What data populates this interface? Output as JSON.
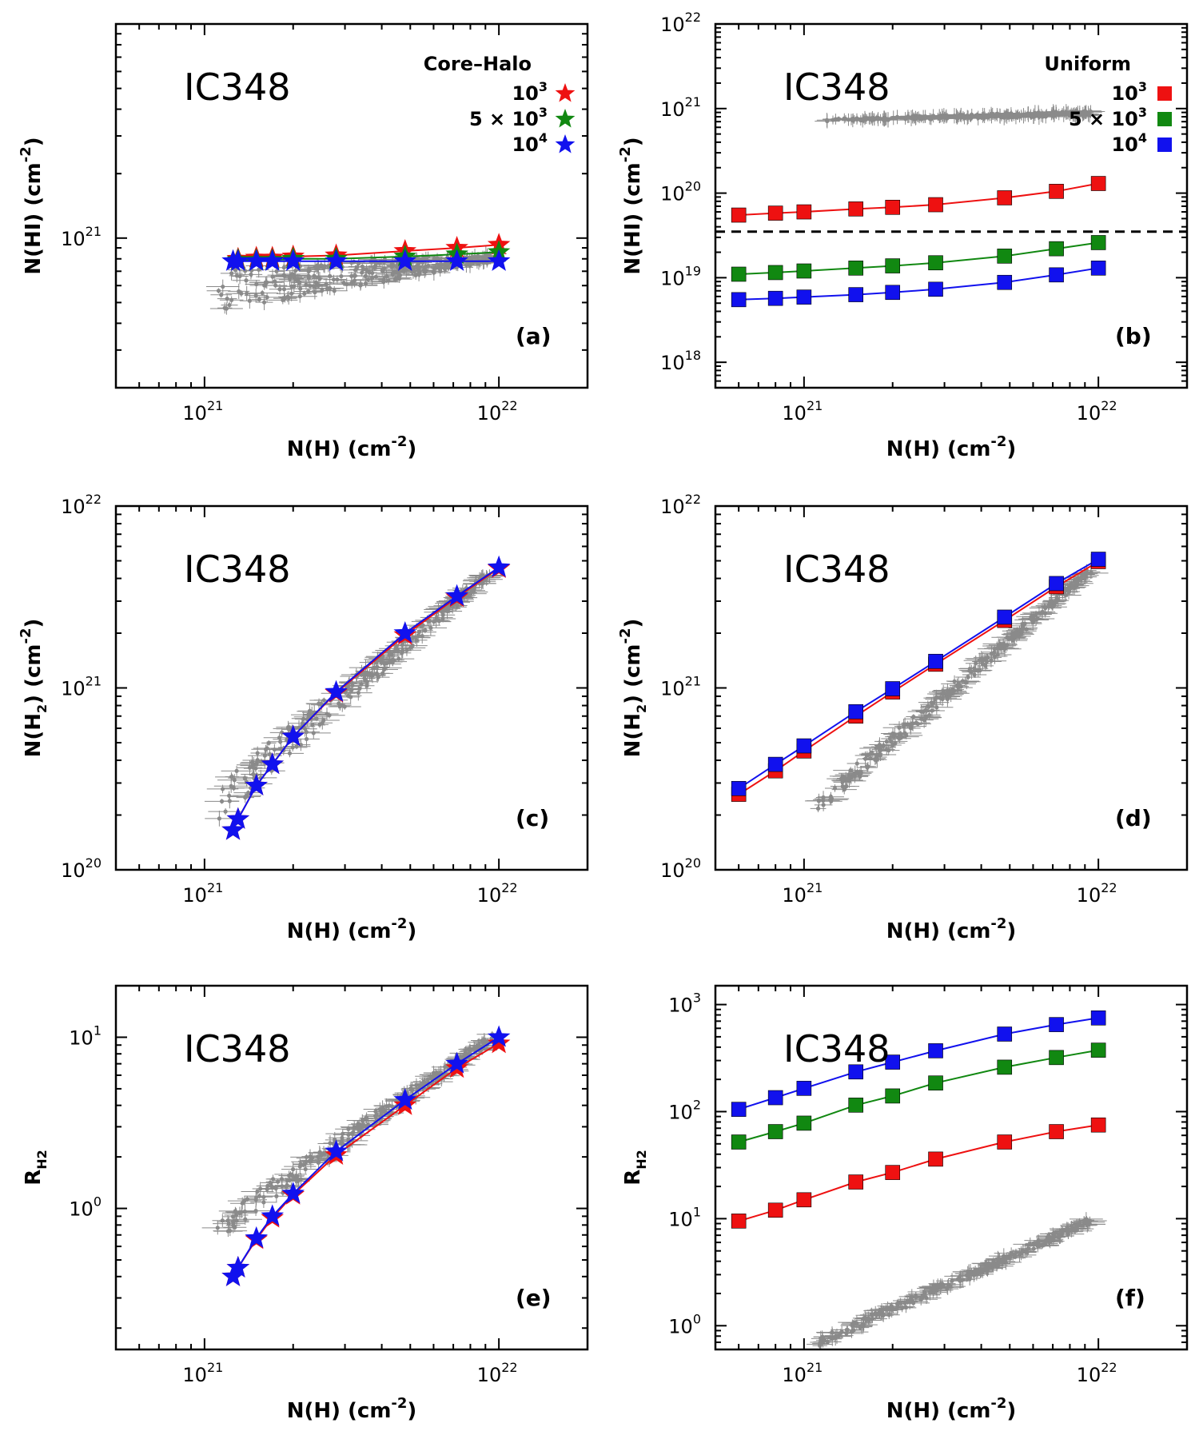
{
  "colors": {
    "red": "#ee1111",
    "green": "#118811",
    "blue": "#1111ee",
    "obs": "#8a8a8a",
    "frame": "#000000"
  },
  "chart_data": [
    {
      "id": "a",
      "type": "line",
      "panel_label": "(a)",
      "title": "IC348",
      "xlabel": "N(H) (cm^-2)",
      "ylabel": "N(HI) (cm^-2)",
      "xlim": [
        5e+20,
        2e+22
      ],
      "ylim": [
        2e+20,
        1e+22
      ],
      "xticks": [
        {
          "v": 1e+21,
          "label": "10",
          "exp": "21"
        },
        {
          "v": 1e+22,
          "label": "10",
          "exp": "22"
        }
      ],
      "yticks": [
        {
          "v": 1e+21,
          "label": "10",
          "exp": "21"
        }
      ],
      "marker": "star",
      "legend": {
        "title": "Core–Halo",
        "entries": [
          "10^3",
          "5 × 10^3",
          "10^4"
        ],
        "position": "top-right"
      },
      "series": [
        {
          "name": "10^3",
          "color": "red",
          "x": [
            1.3e+21,
            1.5e+21,
            1.7e+21,
            2e+21,
            2.8e+21,
            4.8e+21,
            7.2e+21,
            1e+22
          ],
          "y": [
            8e+20,
            8.1e+20,
            8.1e+20,
            8.2e+20,
            8.3e+20,
            8.7e+20,
            9e+20,
            9.3e+20
          ]
        },
        {
          "name": "5 × 10^3",
          "color": "green",
          "x": [
            1.3e+21,
            1.5e+21,
            1.7e+21,
            2e+21,
            2.8e+21,
            4.8e+21,
            7.2e+21,
            1e+22
          ],
          "y": [
            7.9e+20,
            7.9e+20,
            7.9e+20,
            8e+20,
            8e+20,
            8.2e+20,
            8.4e+20,
            8.6e+20
          ]
        },
        {
          "name": "10^4",
          "color": "blue",
          "x": [
            1.25e+21,
            1.3e+21,
            1.5e+21,
            1.7e+21,
            2e+21,
            2.8e+21,
            4.8e+21,
            7.2e+21,
            1e+22
          ],
          "y": [
            7.8e+20,
            7.8e+20,
            7.8e+20,
            7.8e+20,
            7.8e+20,
            7.8e+20,
            7.8e+20,
            7.8e+20,
            7.8e+20
          ]
        }
      ],
      "observed": {
        "x_range": [
          1.1e+21,
          9.5e+21
        ],
        "y_start": [
          4.5e+20,
          7.3e+20
        ],
        "y_end": [
          7.7e+20,
          8.5e+20
        ]
      }
    },
    {
      "id": "b",
      "type": "line",
      "panel_label": "(b)",
      "title": "IC348",
      "xlabel": "N(H) (cm^-2)",
      "ylabel": "N(HI) (cm^-2)",
      "xlim": [
        5e+20,
        2e+22
      ],
      "ylim": [
        5e+17,
        1e+22
      ],
      "xticks": [
        {
          "v": 1e+21,
          "label": "10",
          "exp": "21"
        },
        {
          "v": 1e+22,
          "label": "10",
          "exp": "22"
        }
      ],
      "yticks": [
        {
          "v": 1e+18,
          "label": "10",
          "exp": "18"
        },
        {
          "v": 1e+19,
          "label": "10",
          "exp": "19"
        },
        {
          "v": 1e+20,
          "label": "10",
          "exp": "20"
        },
        {
          "v": 1e+21,
          "label": "10",
          "exp": "21"
        },
        {
          "v": 1e+22,
          "label": "10",
          "exp": "22"
        }
      ],
      "marker": "square",
      "hline": 3.5e+19,
      "legend": {
        "title": "Uniform",
        "entries": [
          "10^3",
          "5 × 10^3",
          "10^4"
        ],
        "position": "top-right"
      },
      "series": [
        {
          "name": "10^3",
          "color": "red",
          "x": [
            6e+20,
            8e+20,
            1e+21,
            1.5e+21,
            2e+21,
            2.8e+21,
            4.8e+21,
            7.2e+21,
            1e+22
          ],
          "y": [
            5.5e+19,
            5.8e+19,
            6e+19,
            6.5e+19,
            6.8e+19,
            7.3e+19,
            8.8e+19,
            1.05e+20,
            1.3e+20
          ]
        },
        {
          "name": "5 × 10^3",
          "color": "green",
          "x": [
            6e+20,
            8e+20,
            1e+21,
            1.5e+21,
            2e+21,
            2.8e+21,
            4.8e+21,
            7.2e+21,
            1e+22
          ],
          "y": [
            1.1e+19,
            1.15e+19,
            1.2e+19,
            1.3e+19,
            1.38e+19,
            1.5e+19,
            1.8e+19,
            2.2e+19,
            2.6e+19
          ]
        },
        {
          "name": "10^4",
          "color": "blue",
          "x": [
            6e+20,
            8e+20,
            1e+21,
            1.5e+21,
            2e+21,
            2.8e+21,
            4.8e+21,
            7.2e+21,
            1e+22
          ],
          "y": [
            5.5e+18,
            5.7e+18,
            5.9e+18,
            6.3e+18,
            6.7e+18,
            7.3e+18,
            8.8e+18,
            1.08e+19,
            1.3e+19
          ]
        }
      ],
      "observed": {
        "x_range": [
          1.1e+21,
          9.5e+21
        ],
        "y_start": [
          7e+20,
          7.5e+20
        ],
        "y_end": [
          8.2e+20,
          9.5e+20
        ]
      }
    },
    {
      "id": "c",
      "type": "line",
      "panel_label": "(c)",
      "title": "IC348",
      "xlabel": "N(H) (cm^-2)",
      "ylabel": "N(H2) (cm^-2)",
      "xlim": [
        5e+20,
        2e+22
      ],
      "ylim": [
        1e+20,
        1e+22
      ],
      "xticks": [
        {
          "v": 1e+21,
          "label": "10",
          "exp": "21"
        },
        {
          "v": 1e+22,
          "label": "10",
          "exp": "22"
        }
      ],
      "yticks": [
        {
          "v": 1e+20,
          "label": "10",
          "exp": "20"
        },
        {
          "v": 1e+21,
          "label": "10",
          "exp": "21"
        },
        {
          "v": 1e+22,
          "label": "10",
          "exp": "22"
        }
      ],
      "marker": "star",
      "series": [
        {
          "name": "10^3",
          "color": "red",
          "x": [
            1.25e+21,
            1.3e+21,
            1.5e+21,
            1.7e+21,
            2e+21,
            2.8e+21,
            4.8e+21,
            7.2e+21,
            1e+22
          ],
          "y": [
            1.65e+20,
            1.9e+20,
            2.9e+20,
            3.8e+20,
            5.4e+20,
            9.4e+20,
            1.95e+21,
            3.15e+21,
            4.55e+21
          ]
        },
        {
          "name": "10^4",
          "color": "blue",
          "x": [
            1.25e+21,
            1.3e+21,
            1.5e+21,
            1.7e+21,
            2e+21,
            2.8e+21,
            4.8e+21,
            7.2e+21,
            1e+22
          ],
          "y": [
            1.65e+20,
            1.9e+20,
            2.9e+20,
            3.8e+20,
            5.4e+20,
            9.5e+20,
            2e+21,
            3.2e+21,
            4.6e+21
          ]
        }
      ],
      "observed": {
        "x_range": [
          1.1e+21,
          9.5e+21
        ],
        "y_start": [
          1.8e+20,
          3e+20
        ],
        "y_end": [
          4.2e+21,
          4.6e+21
        ]
      }
    },
    {
      "id": "d",
      "type": "line",
      "panel_label": "(d)",
      "title": "IC348",
      "xlabel": "N(H) (cm^-2)",
      "ylabel": "N(H2) (cm^-2)",
      "xlim": [
        5e+20,
        2e+22
      ],
      "ylim": [
        1e+20,
        1e+22
      ],
      "xticks": [
        {
          "v": 1e+21,
          "label": "10",
          "exp": "21"
        },
        {
          "v": 1e+22,
          "label": "10",
          "exp": "22"
        }
      ],
      "yticks": [
        {
          "v": 1e+20,
          "label": "10",
          "exp": "20"
        },
        {
          "v": 1e+21,
          "label": "10",
          "exp": "21"
        },
        {
          "v": 1e+22,
          "label": "10",
          "exp": "22"
        }
      ],
      "marker": "square",
      "series": [
        {
          "name": "10^3",
          "color": "red",
          "x": [
            6e+20,
            8e+20,
            1e+21,
            1.5e+21,
            2e+21,
            2.8e+21,
            4.8e+21,
            7.2e+21,
            1e+22
          ],
          "y": [
            2.6e+20,
            3.5e+20,
            4.5e+20,
            7e+20,
            9.5e+20,
            1.35e+21,
            2.35e+21,
            3.6e+21,
            4.95e+21
          ]
        },
        {
          "name": "10^4",
          "color": "blue",
          "x": [
            6e+20,
            8e+20,
            1e+21,
            1.5e+21,
            2e+21,
            2.8e+21,
            4.8e+21,
            7.2e+21,
            1e+22
          ],
          "y": [
            2.8e+20,
            3.8e+20,
            4.8e+20,
            7.4e+20,
            9.9e+20,
            1.4e+21,
            2.45e+21,
            3.75e+21,
            5.1e+21
          ]
        }
      ],
      "observed": {
        "x_range": [
          1.1e+21,
          9.5e+21
        ],
        "y_start": [
          2e+20,
          2.5e+20
        ],
        "y_end": [
          4.3e+21,
          4.7e+21
        ]
      }
    },
    {
      "id": "e",
      "type": "line",
      "panel_label": "(e)",
      "title": "IC348",
      "xlabel": "N(H) (cm^-2)",
      "ylabel": "R_H2",
      "xlim": [
        5e+20,
        2e+22
      ],
      "ylim": [
        0.15,
        20
      ],
      "xticks": [
        {
          "v": 1e+21,
          "label": "10",
          "exp": "21"
        },
        {
          "v": 1e+22,
          "label": "10",
          "exp": "22"
        }
      ],
      "yticks": [
        {
          "v": 1,
          "label": "10",
          "exp": "0"
        },
        {
          "v": 10,
          "label": "10",
          "exp": "1"
        }
      ],
      "marker": "star",
      "series": [
        {
          "name": "10^3",
          "color": "red",
          "x": [
            1.25e+21,
            1.3e+21,
            1.5e+21,
            1.7e+21,
            2e+21,
            2.8e+21,
            4.8e+21,
            7.2e+21,
            1e+22
          ],
          "y": [
            0.4,
            0.45,
            0.66,
            0.88,
            1.2,
            2.05,
            4,
            6.6,
            9.2
          ]
        },
        {
          "name": "10^4",
          "color": "blue",
          "x": [
            1.25e+21,
            1.3e+21,
            1.5e+21,
            1.7e+21,
            2e+21,
            2.8e+21,
            4.8e+21,
            7.2e+21,
            1e+22
          ],
          "y": [
            0.4,
            0.45,
            0.67,
            0.9,
            1.22,
            2.15,
            4.3,
            7,
            10
          ]
        }
      ],
      "observed": {
        "x_range": [
          1.1e+21,
          9.5e+21
        ],
        "y_start": [
          0.65,
          0.9
        ],
        "y_end": [
          9.3,
          10.5
        ]
      }
    },
    {
      "id": "f",
      "type": "line",
      "panel_label": "(f)",
      "title": "IC348",
      "xlabel": "N(H) (cm^-2)",
      "ylabel": "R_H2",
      "xlim": [
        5e+20,
        2e+22
      ],
      "ylim": [
        0.6,
        1500
      ],
      "xticks": [
        {
          "v": 1e+21,
          "label": "10",
          "exp": "21"
        },
        {
          "v": 1e+22,
          "label": "10",
          "exp": "22"
        }
      ],
      "yticks": [
        {
          "v": 1,
          "label": "10",
          "exp": "0"
        },
        {
          "v": 10,
          "label": "10",
          "exp": "1"
        },
        {
          "v": 100,
          "label": "10",
          "exp": "2"
        },
        {
          "v": 1000,
          "label": "10",
          "exp": "3"
        }
      ],
      "marker": "square",
      "series": [
        {
          "name": "10^3",
          "color": "red",
          "x": [
            6e+20,
            8e+20,
            1e+21,
            1.5e+21,
            2e+21,
            2.8e+21,
            4.8e+21,
            7.2e+21,
            1e+22
          ],
          "y": [
            9.5,
            12,
            15,
            22,
            27,
            36,
            52,
            65,
            75
          ]
        },
        {
          "name": "5 × 10^3",
          "color": "green",
          "x": [
            6e+20,
            8e+20,
            1e+21,
            1.5e+21,
            2e+21,
            2.8e+21,
            4.8e+21,
            7.2e+21,
            1e+22
          ],
          "y": [
            52,
            65,
            78,
            115,
            140,
            185,
            260,
            320,
            375
          ]
        },
        {
          "name": "10^4",
          "color": "blue",
          "x": [
            6e+20,
            8e+20,
            1e+21,
            1.5e+21,
            2e+21,
            2.8e+21,
            4.8e+21,
            7.2e+21,
            1e+22
          ],
          "y": [
            105,
            135,
            165,
            235,
            290,
            370,
            530,
            650,
            750
          ]
        }
      ],
      "observed": {
        "x_range": [
          1.1e+21,
          9.5e+21
        ],
        "y_start": [
          0.62,
          0.75
        ],
        "y_end": [
          9,
          10.5
        ]
      }
    }
  ]
}
